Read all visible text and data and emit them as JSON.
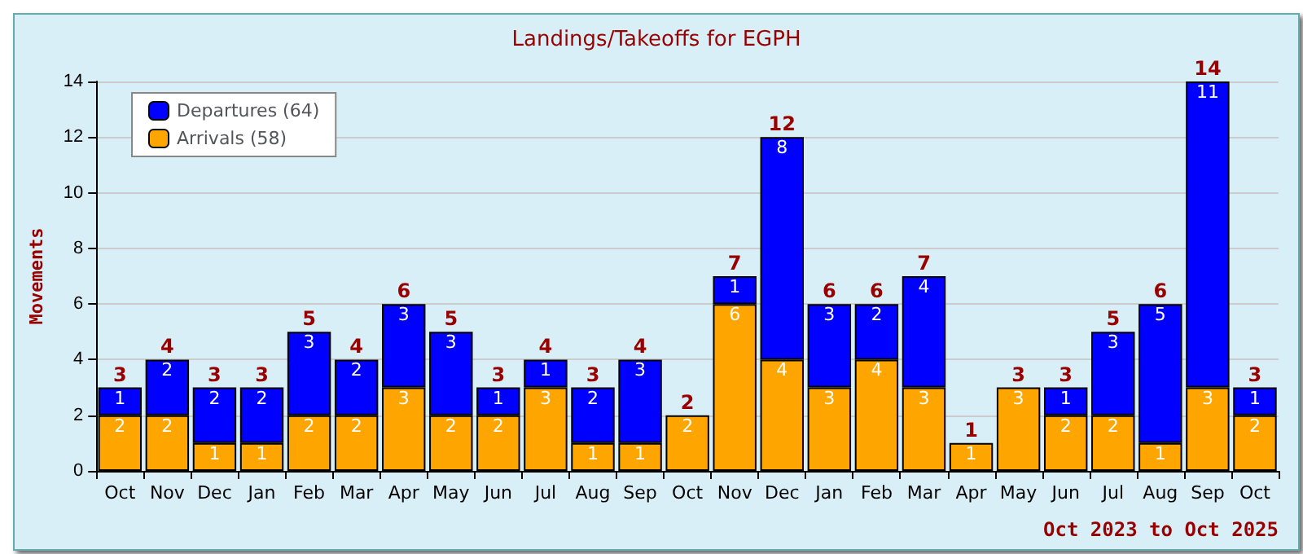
{
  "chart_data": {
    "type": "bar",
    "title": "Landings/Takeoffs for EGPH",
    "ylabel": "Movements",
    "annotations": [
      "Oct 2023 to Oct 2025"
    ],
    "categories": [
      "Oct",
      "Nov",
      "Dec",
      "Jan",
      "Feb",
      "Mar",
      "Apr",
      "May",
      "Jun",
      "Jul",
      "Aug",
      "Sep",
      "Oct",
      "Nov",
      "Dec",
      "Jan",
      "Feb",
      "Mar",
      "Apr",
      "May",
      "Jun",
      "Jul",
      "Aug",
      "Sep",
      "Oct"
    ],
    "stacked": true,
    "series": [
      {
        "name": "Arrivals (58)",
        "color": "#ffa500",
        "values": [
          2,
          2,
          1,
          1,
          2,
          2,
          3,
          2,
          2,
          3,
          1,
          1,
          2,
          6,
          4,
          3,
          4,
          3,
          1,
          3,
          2,
          2,
          1,
          3,
          2
        ],
        "value_labels": [
          "2",
          "2",
          "1",
          "1",
          "2",
          "2",
          "3",
          "2",
          "2",
          "3",
          "1",
          "1",
          "2",
          "6",
          "4",
          "3",
          "4",
          "3",
          "1",
          "3",
          "2",
          "2",
          "1",
          "3",
          "2"
        ]
      },
      {
        "name": "Departures (64)",
        "color": "#0000ff",
        "values": [
          1,
          2,
          2,
          2,
          3,
          2,
          3,
          3,
          1,
          1,
          2,
          3,
          0,
          1,
          8,
          3,
          2,
          4,
          0,
          0,
          1,
          3,
          5,
          11,
          1
        ],
        "value_labels": [
          "1",
          "2",
          "2",
          "2",
          "3",
          "2",
          "3",
          "3",
          "1",
          "1",
          "2",
          "3",
          null,
          "1",
          "8",
          "3",
          "2",
          "4",
          null,
          null,
          "1",
          "3",
          "5",
          "11",
          "1"
        ]
      }
    ],
    "totals": [
      "3",
      "4",
      "3",
      "3",
      "5",
      "4",
      "6",
      "5",
      "3",
      "4",
      "3",
      "4",
      "2",
      "7",
      "12",
      "6",
      "6",
      "7",
      "1",
      "3",
      "3",
      "5",
      "6",
      "14",
      "3"
    ],
    "ylim": [
      0,
      14
    ],
    "yticks": [
      0,
      2,
      4,
      6,
      8,
      10,
      12,
      14
    ],
    "grid": "y",
    "legend": "top left"
  }
}
